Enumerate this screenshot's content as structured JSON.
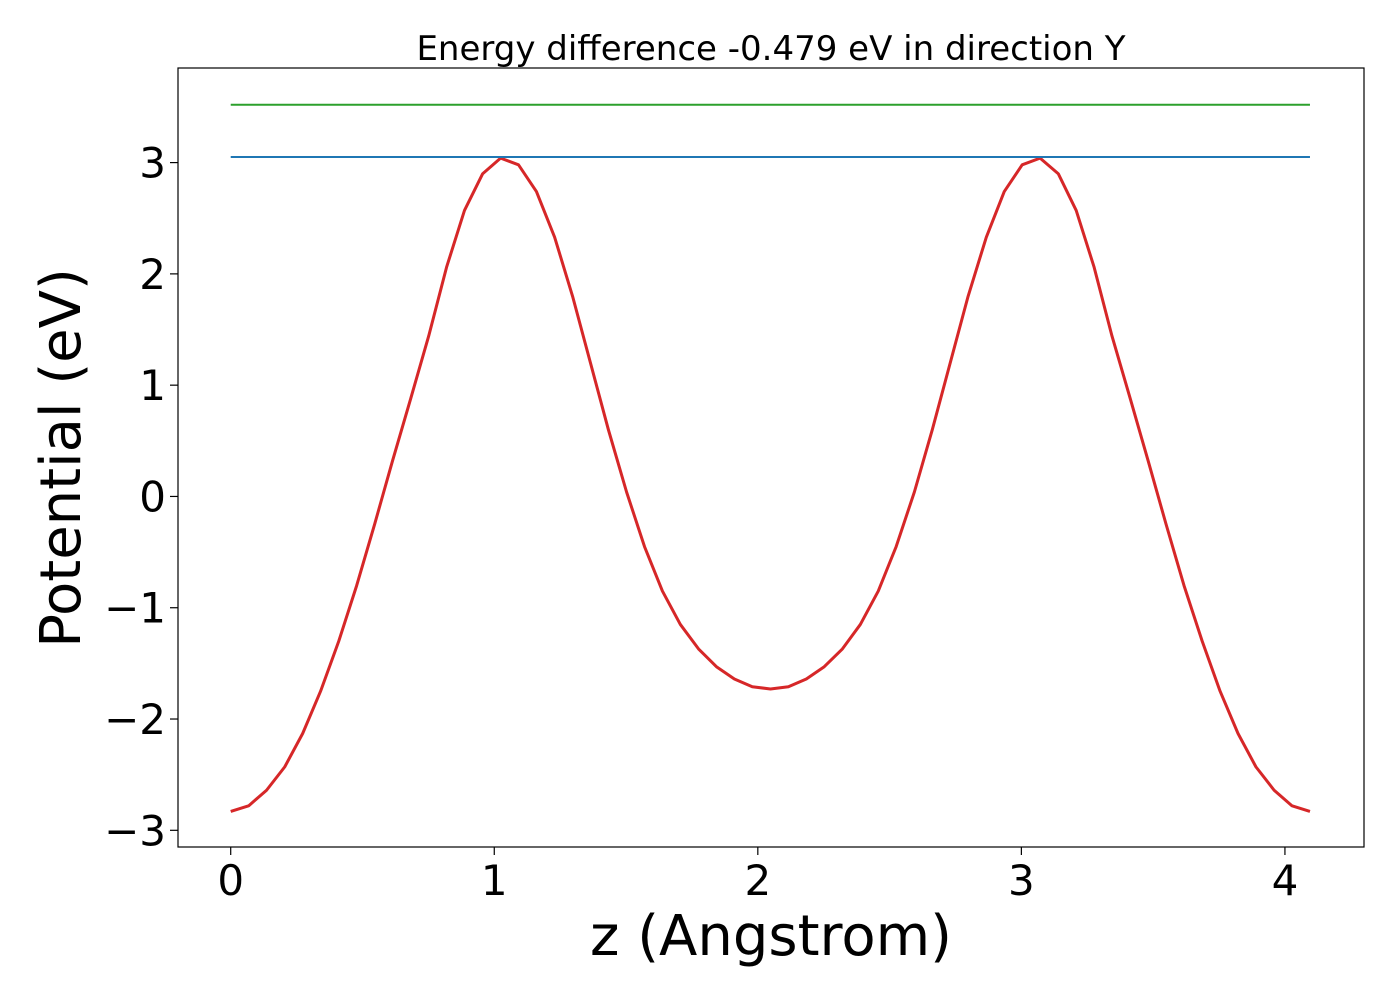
{
  "chart_data": {
    "type": "line",
    "title": "Energy difference -0.479 eV in direction Y",
    "xlabel": "z (Angstrom)",
    "ylabel": "Potential (eV)",
    "xlim": [
      -0.2,
      4.3
    ],
    "ylim": [
      -3.15,
      3.85
    ],
    "x_ticks": [
      0,
      1,
      2,
      3,
      4
    ],
    "x_tick_labels": [
      "0",
      "1",
      "2",
      "3",
      "4"
    ],
    "y_ticks": [
      -3,
      -2,
      -1,
      0,
      1,
      2,
      3
    ],
    "y_tick_labels": [
      "−3",
      "−2",
      "−1",
      "0",
      "1",
      "2",
      "3"
    ],
    "grid": false,
    "legend": "none",
    "series": [
      {
        "color": "#d62728",
        "x": [
          0.0,
          0.068,
          0.136,
          0.205,
          0.273,
          0.341,
          0.41,
          0.478,
          0.546,
          0.614,
          0.683,
          0.751,
          0.819,
          0.887,
          0.956,
          1.024,
          1.092,
          1.16,
          1.229,
          1.297,
          1.365,
          1.433,
          1.502,
          1.57,
          1.638,
          1.706,
          1.775,
          1.843,
          1.911,
          1.979,
          2.048,
          2.116,
          2.184,
          2.252,
          2.321,
          2.389,
          2.457,
          2.525,
          2.594,
          2.662,
          2.73,
          2.798,
          2.867,
          2.935,
          3.003,
          3.071,
          3.14,
          3.208,
          3.276,
          3.344,
          3.413,
          3.481,
          3.549,
          3.617,
          3.686,
          3.754,
          3.822,
          3.89,
          3.959,
          4.027,
          4.095
        ],
        "y": [
          -2.83,
          -2.78,
          -2.64,
          -2.43,
          -2.13,
          -1.75,
          -1.3,
          -0.8,
          -0.25,
          0.32,
          0.88,
          1.44,
          2.06,
          2.57,
          2.9,
          3.04,
          2.98,
          2.74,
          2.33,
          1.8,
          1.2,
          0.6,
          0.04,
          -0.45,
          -0.85,
          -1.15,
          -1.37,
          -1.53,
          -1.64,
          -1.71,
          -1.73,
          -1.71,
          -1.64,
          -1.53,
          -1.37,
          -1.15,
          -0.85,
          -0.45,
          0.04,
          0.6,
          1.2,
          1.8,
          2.33,
          2.74,
          2.98,
          3.04,
          2.9,
          2.57,
          2.06,
          1.44,
          0.88,
          0.32,
          -0.25,
          -0.8,
          -1.3,
          -1.75,
          -2.13,
          -2.43,
          -2.64,
          -2.78,
          -2.83
        ]
      },
      {
        "color": "#1f77b4",
        "x": [
          0.0,
          4.095
        ],
        "y": [
          3.05,
          3.05
        ]
      },
      {
        "color": "#2ca02c",
        "x": [
          0.0,
          4.095
        ],
        "y": [
          3.52,
          3.52
        ]
      }
    ]
  }
}
